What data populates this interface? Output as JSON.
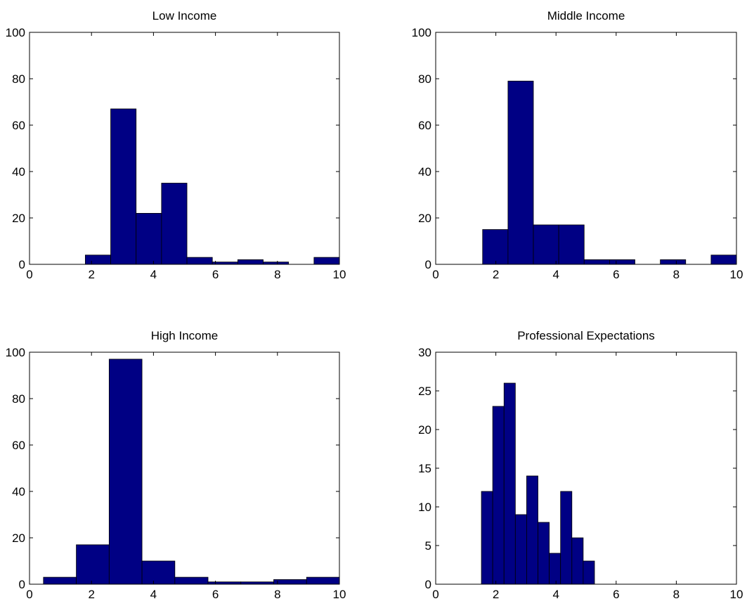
{
  "chart_data": [
    {
      "type": "histogram",
      "title": "Low Income",
      "color": "#000084",
      "bins": [
        1.8,
        2.62,
        3.44,
        4.26,
        5.08,
        5.9,
        6.72,
        7.54,
        8.36,
        9.18,
        10
      ],
      "values": [
        4,
        67,
        22,
        35,
        3,
        1,
        2,
        1,
        0,
        3
      ],
      "xlim": [
        0,
        10
      ],
      "xticks": [
        0,
        2,
        4,
        6,
        8,
        10
      ],
      "ylim": [
        0,
        100
      ],
      "yticks": [
        0,
        20,
        40,
        60,
        80,
        100
      ]
    },
    {
      "type": "histogram",
      "title": "Middle Income",
      "color": "#000084",
      "bins": [
        1.56,
        2.404,
        3.248,
        4.092,
        4.936,
        5.78,
        6.624,
        7.468,
        8.312,
        9.156,
        10
      ],
      "values": [
        15,
        79,
        17,
        17,
        2,
        2,
        0,
        2,
        0,
        4
      ],
      "xlim": [
        0,
        10
      ],
      "xticks": [
        0,
        2,
        4,
        6,
        8,
        10
      ],
      "ylim": [
        0,
        100
      ],
      "yticks": [
        0,
        20,
        40,
        60,
        80,
        100
      ]
    },
    {
      "type": "histogram",
      "title": "High Income",
      "color": "#000084",
      "bins": [
        0.45,
        1.51,
        2.57,
        3.63,
        4.69,
        5.76,
        6.82,
        7.88,
        8.94,
        10
      ],
      "values": [
        3,
        17,
        97,
        10,
        3,
        1,
        1,
        2,
        3
      ],
      "xlim": [
        0,
        10
      ],
      "xticks": [
        0,
        2,
        4,
        6,
        8,
        10
      ],
      "ylim": [
        0,
        100
      ],
      "yticks": [
        0,
        20,
        40,
        60,
        80,
        100
      ]
    },
    {
      "type": "histogram",
      "title": "Professional Expectations",
      "color": "#000084",
      "bins": [
        1.52,
        1.896,
        2.272,
        2.648,
        3.024,
        3.4,
        3.776,
        4.152,
        4.528,
        4.904,
        5.28
      ],
      "values": [
        12,
        23,
        26,
        9,
        14,
        8,
        4,
        12,
        6,
        3
      ],
      "xlim": [
        0,
        10
      ],
      "xticks": [
        0,
        2,
        4,
        6,
        8,
        10
      ],
      "ylim": [
        0,
        30
      ],
      "yticks": [
        0,
        5,
        10,
        15,
        20,
        25,
        30
      ]
    }
  ]
}
